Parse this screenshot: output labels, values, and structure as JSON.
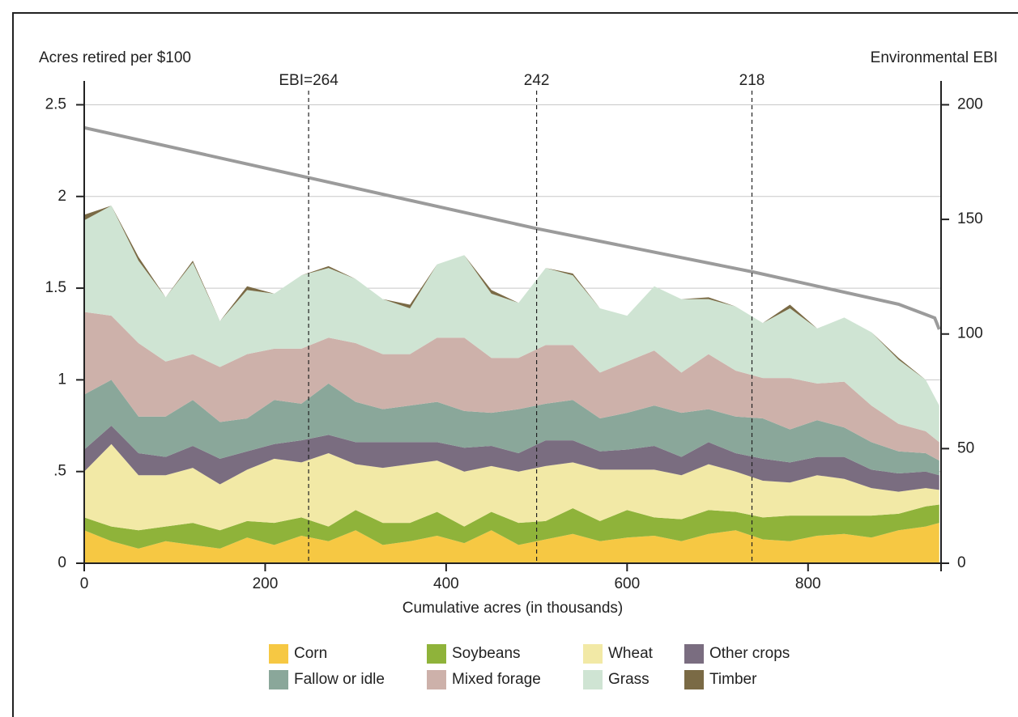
{
  "chart_data": {
    "type": "stacked-area",
    "y_label": "Acres retired per $100",
    "y2_label": "Environmental EBI",
    "x_label": "Cumulative acres (in thousands)",
    "x": [
      0,
      30,
      60,
      90,
      120,
      150,
      180,
      210,
      240,
      270,
      300,
      330,
      360,
      390,
      420,
      450,
      480,
      510,
      540,
      570,
      600,
      630,
      660,
      690,
      720,
      750,
      780,
      810,
      840,
      870,
      900,
      930,
      945
    ],
    "series": [
      {
        "name": "Corn",
        "color": "#f6c843",
        "values": [
          0.18,
          0.12,
          0.08,
          0.12,
          0.1,
          0.08,
          0.14,
          0.1,
          0.15,
          0.12,
          0.18,
          0.1,
          0.12,
          0.15,
          0.11,
          0.18,
          0.1,
          0.13,
          0.16,
          0.12,
          0.14,
          0.15,
          0.12,
          0.16,
          0.18,
          0.13,
          0.12,
          0.15,
          0.16,
          0.14,
          0.18,
          0.2,
          0.22
        ]
      },
      {
        "name": "Soybeans",
        "color": "#8fb33a",
        "values": [
          0.07,
          0.08,
          0.1,
          0.08,
          0.12,
          0.1,
          0.09,
          0.12,
          0.1,
          0.08,
          0.11,
          0.12,
          0.1,
          0.13,
          0.09,
          0.1,
          0.12,
          0.1,
          0.14,
          0.11,
          0.15,
          0.1,
          0.12,
          0.13,
          0.1,
          0.12,
          0.14,
          0.11,
          0.1,
          0.12,
          0.09,
          0.11,
          0.1
        ]
      },
      {
        "name": "Wheat",
        "color": "#f2e9a6",
        "values": [
          0.25,
          0.45,
          0.3,
          0.28,
          0.3,
          0.25,
          0.28,
          0.35,
          0.3,
          0.4,
          0.25,
          0.3,
          0.32,
          0.28,
          0.3,
          0.25,
          0.28,
          0.3,
          0.25,
          0.28,
          0.22,
          0.26,
          0.24,
          0.25,
          0.22,
          0.2,
          0.18,
          0.22,
          0.2,
          0.15,
          0.12,
          0.1,
          0.08
        ]
      },
      {
        "name": "Other crops",
        "color": "#7a6d80",
        "values": [
          0.12,
          0.1,
          0.12,
          0.1,
          0.12,
          0.14,
          0.1,
          0.08,
          0.12,
          0.1,
          0.12,
          0.14,
          0.12,
          0.1,
          0.13,
          0.11,
          0.1,
          0.14,
          0.12,
          0.1,
          0.11,
          0.13,
          0.1,
          0.12,
          0.1,
          0.12,
          0.11,
          0.1,
          0.12,
          0.1,
          0.1,
          0.09,
          0.08
        ]
      },
      {
        "name": "Fallow or idle",
        "color": "#8aa79a",
        "values": [
          0.3,
          0.25,
          0.2,
          0.22,
          0.25,
          0.2,
          0.18,
          0.24,
          0.2,
          0.28,
          0.22,
          0.18,
          0.2,
          0.22,
          0.2,
          0.18,
          0.24,
          0.2,
          0.22,
          0.18,
          0.2,
          0.22,
          0.24,
          0.18,
          0.2,
          0.22,
          0.18,
          0.2,
          0.16,
          0.15,
          0.12,
          0.1,
          0.08
        ]
      },
      {
        "name": "Mixed forage",
        "color": "#cdb1aa",
        "values": [
          0.45,
          0.35,
          0.4,
          0.3,
          0.25,
          0.3,
          0.35,
          0.28,
          0.3,
          0.25,
          0.32,
          0.3,
          0.28,
          0.35,
          0.4,
          0.3,
          0.28,
          0.32,
          0.3,
          0.25,
          0.28,
          0.3,
          0.22,
          0.3,
          0.25,
          0.22,
          0.28,
          0.2,
          0.25,
          0.2,
          0.15,
          0.12,
          0.1
        ]
      },
      {
        "name": "Grass",
        "color": "#cfe4d3",
        "values": [
          0.5,
          0.6,
          0.45,
          0.35,
          0.5,
          0.25,
          0.35,
          0.3,
          0.4,
          0.38,
          0.35,
          0.3,
          0.25,
          0.4,
          0.45,
          0.35,
          0.3,
          0.42,
          0.38,
          0.35,
          0.25,
          0.35,
          0.4,
          0.3,
          0.35,
          0.3,
          0.38,
          0.3,
          0.35,
          0.4,
          0.35,
          0.28,
          0.2
        ]
      },
      {
        "name": "Timber",
        "color": "#7a6a45",
        "values": [
          0.03,
          0,
          0.02,
          0,
          0.01,
          0,
          0.02,
          0,
          0,
          0.01,
          0,
          0,
          0.02,
          0,
          0,
          0.02,
          0,
          0,
          0.01,
          0,
          0,
          0,
          0,
          0.01,
          0,
          0,
          0.02,
          0,
          0,
          0,
          0.01,
          0,
          0
        ]
      }
    ],
    "ebi_line": {
      "color": "#9b9b9b",
      "axis": "y2",
      "x": [
        0,
        250,
        500,
        740,
        900,
        940,
        945
      ],
      "values": [
        190,
        168,
        146,
        127,
        113,
        107,
        102
      ]
    },
    "vlines": [
      {
        "x": 248,
        "label": "EBI=264"
      },
      {
        "x": 500,
        "label": "242"
      },
      {
        "x": 738,
        "label": "218"
      }
    ],
    "xlim": [
      0,
      947
    ],
    "xticks": [
      0,
      200,
      400,
      600,
      800
    ],
    "ylim": [
      0,
      2.63
    ],
    "yticks": [
      0,
      {
        "value": 0.5,
        "label": ".5"
      },
      1,
      1.5,
      2,
      2.5
    ],
    "y2lim": [
      0,
      210.4
    ],
    "y2ticks": [
      0,
      50,
      100,
      150,
      200
    ],
    "grid": true
  }
}
